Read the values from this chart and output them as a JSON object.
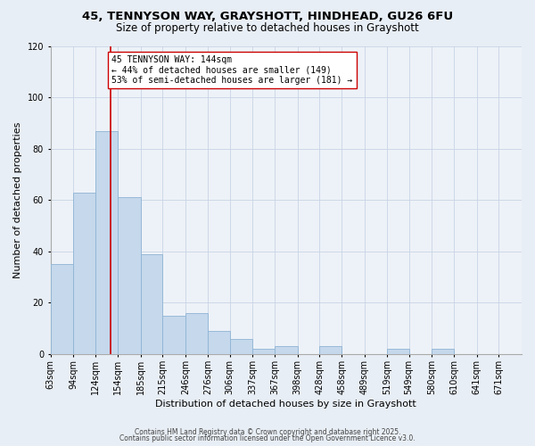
{
  "title": "45, TENNYSON WAY, GRAYSHOTT, HINDHEAD, GU26 6FU",
  "subtitle": "Size of property relative to detached houses in Grayshott",
  "xlabel": "Distribution of detached houses by size in Grayshott",
  "ylabel": "Number of detached properties",
  "bar_values": [
    35,
    63,
    87,
    61,
    39,
    15,
    16,
    9,
    6,
    2,
    3,
    0,
    3,
    0,
    0,
    2,
    0,
    2,
    0,
    0,
    0
  ],
  "bar_labels": [
    "63sqm",
    "94sqm",
    "124sqm",
    "154sqm",
    "185sqm",
    "215sqm",
    "246sqm",
    "276sqm",
    "306sqm",
    "337sqm",
    "367sqm",
    "398sqm",
    "428sqm",
    "458sqm",
    "489sqm",
    "519sqm",
    "549sqm",
    "580sqm",
    "610sqm",
    "641sqm",
    "671sqm"
  ],
  "bin_edges": [
    63,
    94,
    124,
    154,
    185,
    215,
    246,
    276,
    306,
    337,
    367,
    398,
    428,
    458,
    489,
    519,
    549,
    580,
    610,
    641,
    671,
    702
  ],
  "bar_color": "#c5d8ec",
  "bar_edge_color": "#8eb4d4",
  "vline_x": 144,
  "vline_color": "#cc0000",
  "annotation_text": "45 TENNYSON WAY: 144sqm\n← 44% of detached houses are smaller (149)\n53% of semi-detached houses are larger (181) →",
  "annotation_box_facecolor": "#ffffff",
  "annotation_box_edgecolor": "#cc0000",
  "ylim": [
    0,
    120
  ],
  "yticks": [
    0,
    20,
    40,
    60,
    80,
    100,
    120
  ],
  "footer1": "Contains HM Land Registry data © Crown copyright and database right 2025.",
  "footer2": "Contains public sector information licensed under the Open Government Licence v3.0.",
  "bg_color": "#e8eef5",
  "plot_bg_color": "#edf2f8",
  "grid_color": "#c8d4e4",
  "title_fontsize": 9.5,
  "subtitle_fontsize": 8.5,
  "xlabel_fontsize": 8,
  "ylabel_fontsize": 8,
  "tick_fontsize": 7,
  "annot_fontsize": 7,
  "footer_fontsize": 5.5
}
